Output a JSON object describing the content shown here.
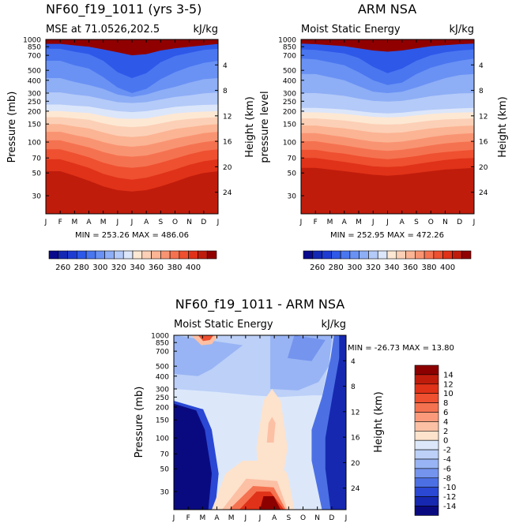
{
  "panels": [
    {
      "title": "NF60_f19_1011 (yrs 3-5)",
      "subtitle": "MSE at 71.0526,202.5",
      "units": "kJ/kg",
      "left_axis_label": "Pressure (mb)",
      "right_axis_label": "Height (km)",
      "stats": "MIN = 253.26  MAX = 486.06"
    },
    {
      "title": "ARM NSA",
      "subtitle": "Moist Static Energy",
      "units": "kJ/kg",
      "left_axis_label": "pressure level",
      "right_axis_label": "Height (km)",
      "stats": "MIN = 252.95  MAX = 472.26"
    },
    {
      "title": "NF60_f19_1011 - ARM NSA",
      "subtitle": "Moist Static Energy",
      "units": "kJ/kg",
      "left_axis_label": "Pressure (mb)",
      "right_axis_label": "Height (km)",
      "stats": "MIN = -26.73  MAX =  13.80"
    }
  ],
  "chart_data": [
    {
      "type": "heatmap",
      "title": "NF60_f19_1011 (yrs 3-5)",
      "x_ticks": [
        "J",
        "F",
        "M",
        "A",
        "M",
        "J",
        "J",
        "A",
        "S",
        "O",
        "N",
        "D",
        "J"
      ],
      "pressure_ticks": [
        "30",
        "50",
        "70",
        "100",
        "150",
        "200",
        "250",
        "300",
        "400",
        "500",
        "700",
        "850",
        "1000"
      ],
      "height_ticks": [
        "24",
        "20",
        "16",
        "12",
        "8",
        "4"
      ],
      "ylim_mb": [
        1000,
        20
      ],
      "min": 253.26,
      "max": 486.06,
      "levels_bottom_mb": [
        [
          905,
          905,
          875,
          850,
          800,
          750,
          700,
          720,
          780,
          820,
          850,
          875,
          905
        ],
        [
          810,
          810,
          760,
          720,
          620,
          480,
          420,
          470,
          600,
          690,
          740,
          790,
          810
        ],
        [
          620,
          620,
          560,
          520,
          430,
          340,
          300,
          330,
          410,
          480,
          540,
          590,
          620
        ],
        [
          420,
          420,
          385,
          360,
          330,
          290,
          275,
          290,
          320,
          345,
          380,
          410,
          420
        ],
        [
          305,
          305,
          290,
          280,
          262,
          245,
          240,
          245,
          260,
          275,
          285,
          298,
          305
        ],
        [
          232,
          232,
          226,
          222,
          210,
          200,
          196,
          200,
          210,
          220,
          226,
          230,
          232
        ],
        [
          200,
          200,
          196,
          192,
          180,
          170,
          168,
          170,
          180,
          190,
          195,
          198,
          200
        ],
        [
          175,
          175,
          170,
          165,
          152,
          143,
          140,
          143,
          152,
          162,
          168,
          172,
          175
        ],
        [
          150,
          150,
          142,
          136,
          124,
          115,
          112,
          115,
          124,
          134,
          140,
          146,
          150
        ],
        [
          126,
          126,
          117,
          110,
          100,
          93,
          90,
          93,
          100,
          108,
          115,
          122,
          126
        ],
        [
          104,
          104,
          96,
          89,
          80,
          74,
          72,
          74,
          80,
          87,
          94,
          100,
          104
        ],
        [
          85,
          85,
          78,
          71,
          63,
          58,
          56,
          58,
          63,
          69,
          76,
          82,
          85
        ],
        [
          68,
          68,
          62,
          56,
          49,
          45,
          43,
          45,
          49,
          54,
          60,
          65,
          68
        ],
        [
          52,
          52,
          47,
          42,
          37,
          34,
          33,
          34,
          37,
          41,
          46,
          50,
          52
        ]
      ],
      "colorbar": {
        "labels": [
          "260",
          "280",
          "300",
          "320",
          "340",
          "360",
          "380",
          "400"
        ],
        "colors": [
          "#0a0a8c",
          "#1428b4",
          "#1e3cd2",
          "#2e58e8",
          "#4a76f0",
          "#6a92f4",
          "#8eaef6",
          "#b4caf8",
          "#dce6fa",
          "#fde8d4",
          "#fcd0b6",
          "#fbb494",
          "#f99472",
          "#f57250",
          "#ee5030",
          "#e03218",
          "#c01c0c",
          "#900000"
        ]
      }
    },
    {
      "type": "heatmap",
      "title": "ARM NSA",
      "x_ticks": [
        "J",
        "F",
        "M",
        "A",
        "M",
        "J",
        "J",
        "A",
        "S",
        "O",
        "N",
        "D",
        "J"
      ],
      "pressure_ticks": [
        "30",
        "50",
        "70",
        "100",
        "150",
        "200",
        "250",
        "300",
        "400",
        "500",
        "700",
        "850",
        "1000"
      ],
      "height_ticks": [
        "24",
        "20",
        "16",
        "12",
        "8",
        "4"
      ],
      "ylim_mb": [
        1000,
        20
      ],
      "min": 252.95,
      "max": 472.26,
      "levels_bottom_mb": [
        [
          910,
          900,
          880,
          860,
          820,
          780,
          760,
          780,
          820,
          860,
          880,
          900,
          910
        ],
        [
          800,
          790,
          760,
          730,
          660,
          540,
          470,
          520,
          620,
          700,
          750,
          780,
          800
        ],
        [
          650,
          640,
          600,
          560,
          480,
          400,
          360,
          380,
          460,
          530,
          580,
          620,
          650
        ],
        [
          460,
          460,
          430,
          400,
          350,
          310,
          300,
          310,
          340,
          380,
          420,
          450,
          460
        ],
        [
          300,
          300,
          292,
          282,
          265,
          252,
          248,
          252,
          265,
          280,
          290,
          298,
          300
        ],
        [
          215,
          215,
          212,
          208,
          200,
          193,
          190,
          193,
          200,
          206,
          210,
          213,
          215
        ],
        [
          195,
          195,
          192,
          188,
          182,
          176,
          174,
          176,
          182,
          188,
          192,
          194,
          195
        ],
        [
          170,
          170,
          166,
          162,
          156,
          150,
          148,
          150,
          156,
          162,
          166,
          168,
          170
        ],
        [
          145,
          145,
          140,
          136,
          130,
          124,
          122,
          124,
          130,
          136,
          140,
          143,
          145
        ],
        [
          122,
          122,
          117,
          112,
          106,
          101,
          99,
          101,
          106,
          112,
          117,
          120,
          122
        ],
        [
          102,
          102,
          97,
          93,
          88,
          84,
          82,
          84,
          88,
          93,
          97,
          100,
          102
        ],
        [
          84,
          84,
          80,
          77,
          73,
          70,
          68,
          70,
          73,
          77,
          80,
          82,
          84
        ],
        [
          70,
          70,
          67,
          64,
          61,
          58,
          57,
          58,
          61,
          64,
          67,
          69,
          70
        ],
        [
          56,
          56,
          54,
          52,
          50,
          48,
          47,
          48,
          50,
          52,
          54,
          55,
          56
        ]
      ],
      "colorbar": {
        "labels": [
          "260",
          "280",
          "300",
          "320",
          "340",
          "360",
          "380",
          "400"
        ],
        "colors": [
          "#0a0a8c",
          "#1428b4",
          "#1e3cd2",
          "#2e58e8",
          "#4a76f0",
          "#6a92f4",
          "#8eaef6",
          "#b4caf8",
          "#dce6fa",
          "#fde8d4",
          "#fcd0b6",
          "#fbb494",
          "#f99472",
          "#f57250",
          "#ee5030",
          "#e03218",
          "#c01c0c",
          "#900000"
        ]
      }
    },
    {
      "type": "heatmap",
      "title": "NF60_f19_1011 - ARM NSA",
      "x_ticks": [
        "J",
        "F",
        "M",
        "A",
        "M",
        "J",
        "J",
        "A",
        "S",
        "O",
        "N",
        "D",
        "J"
      ],
      "pressure_ticks": [
        "30",
        "50",
        "70",
        "100",
        "150",
        "200",
        "250",
        "300",
        "400",
        "500",
        "700",
        "850",
        "1000"
      ],
      "height_ticks": [
        "24",
        "20",
        "16",
        "12",
        "8",
        "4"
      ],
      "ylim_mb": [
        1000,
        20
      ],
      "min": -26.73,
      "max": 13.8,
      "colorbar": {
        "labels": [
          "14",
          "12",
          "10",
          "8",
          "6",
          "4",
          "2",
          "0",
          "-2",
          "-4",
          "-6",
          "-8",
          "-10",
          "-12",
          "-14"
        ],
        "colors": [
          "#8c0000",
          "#c01c0c",
          "#e03218",
          "#ee5030",
          "#f57250",
          "#fb9a7a",
          "#fcc0a4",
          "#fde2cc",
          "#dce8fa",
          "#bcd0f8",
          "#98b4f4",
          "#7494ee",
          "#4c70e4",
          "#2a48d4",
          "#1628b0",
          "#0a0a80"
        ]
      },
      "features": {
        "background_value": "-2..0",
        "winter_blocks_value": "< -14",
        "stratosphere_positive_peak": "> 14",
        "upper_troposphere_core": "2..4",
        "fall_lower_column": "-4..-2"
      }
    }
  ]
}
